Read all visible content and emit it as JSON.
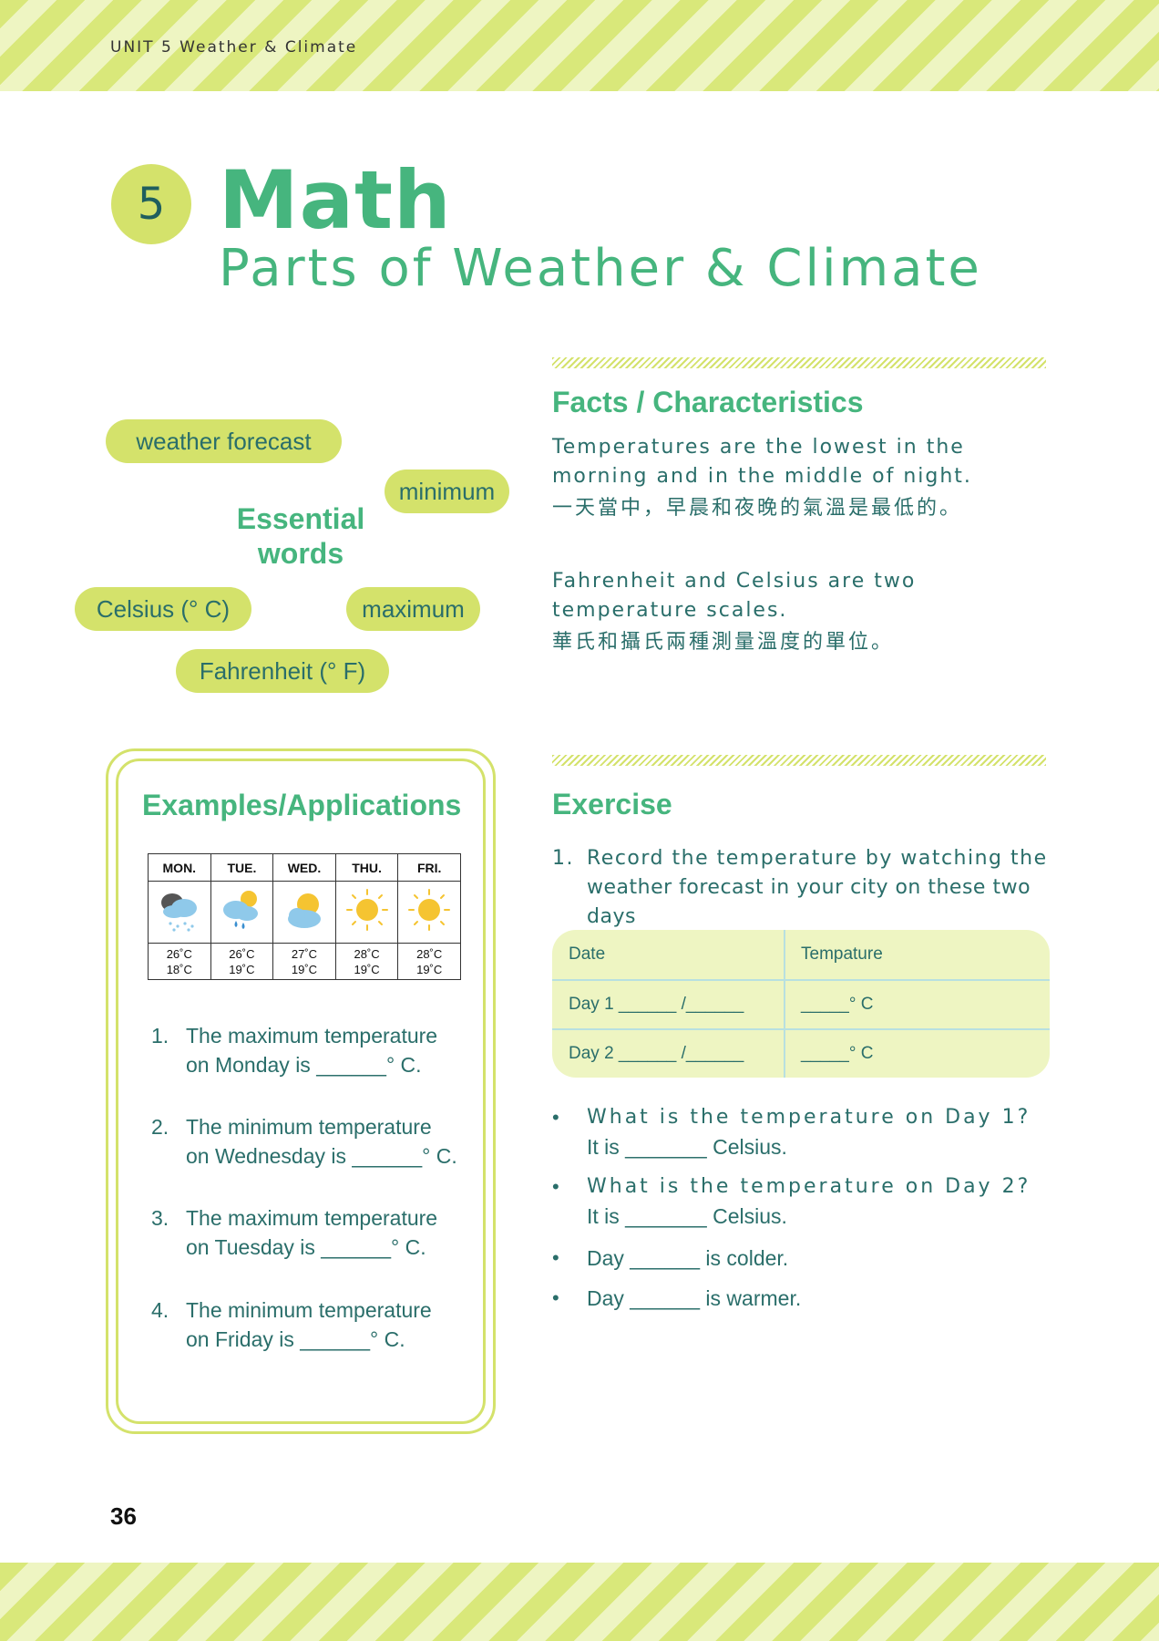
{
  "header": {
    "unit_label": "UNIT 5  Weather & Climate"
  },
  "lesson": {
    "number": "5",
    "title": "Math",
    "subtitle": "Parts of Weather & Climate"
  },
  "essential_words": {
    "heading_line1": "Essential",
    "heading_line2": "words",
    "words": {
      "forecast": "weather forecast",
      "minimum": "minimum",
      "celsius": "Celsius (° C)",
      "maximum": "maximum",
      "fahrenheit": "Fahrenheit (° F)"
    }
  },
  "facts": {
    "heading": "Facts / Characteristics",
    "items": [
      {
        "en": "Temperatures are the lowest in the morning and in the middle of night.",
        "zh": "一天當中，早晨和夜晚的氣溫是最低的。"
      },
      {
        "en": "Fahrenheit and Celsius are two temperature scales.",
        "zh": "華氏和攝氏兩種測量溫度的單位。"
      }
    ]
  },
  "examples": {
    "heading": "Examples/Applications",
    "forecast_days": [
      {
        "day": "MON.",
        "icon": "rain-cloud-icon",
        "high": "26˚C",
        "low": "18˚C"
      },
      {
        "day": "TUE.",
        "icon": "sun-shower-icon",
        "high": "26˚C",
        "low": "19˚C"
      },
      {
        "day": "WED.",
        "icon": "partly-cloudy-icon",
        "high": "27˚C",
        "low": "19˚C"
      },
      {
        "day": "THU.",
        "icon": "sun-icon",
        "high": "28˚C",
        "low": "19˚C"
      },
      {
        "day": "FRI.",
        "icon": "sun-icon",
        "high": "28˚C",
        "low": "19˚C"
      }
    ],
    "questions": [
      {
        "num": "1.",
        "line1": "The maximum temperature",
        "line2": "on Monday is ______° C."
      },
      {
        "num": "2.",
        "line1": "The minimum temperature",
        "line2": "on Wednesday is ______° C."
      },
      {
        "num": "3.",
        "line1": "The maximum temperature",
        "line2": "on Tuesday is ______° C."
      },
      {
        "num": "4.",
        "line1": "The minimum temperature",
        "line2": "on Friday is ______° C."
      }
    ]
  },
  "exercise": {
    "heading": "Exercise",
    "instruction_num": "1.",
    "instruction_line1": "Record the temperature by watching the",
    "instruction_line2": "weather forecast in your city on these two days",
    "table": {
      "header": [
        "Date",
        "Tempature"
      ],
      "rows": [
        [
          "Day 1 ______ /______",
          "_____° C"
        ],
        [
          "Day 2 ______ /______",
          "_____° C"
        ]
      ]
    },
    "bullets": [
      {
        "line1": "What is the temperature on Day 1?",
        "line2": "It is _______ Celsius."
      },
      {
        "line1": "What is the temperature on Day 2?",
        "line2": "It is _______ Celsius."
      },
      {
        "line1": "Day ______ is colder."
      },
      {
        "line1": "Day ______ is warmer."
      }
    ],
    "bullet_symbol": "•"
  },
  "footer": {
    "page_number": "36"
  },
  "colors": {
    "accent_green": "#46b57e",
    "lime": "#d4e26b",
    "text_teal": "#2a6e6a"
  }
}
